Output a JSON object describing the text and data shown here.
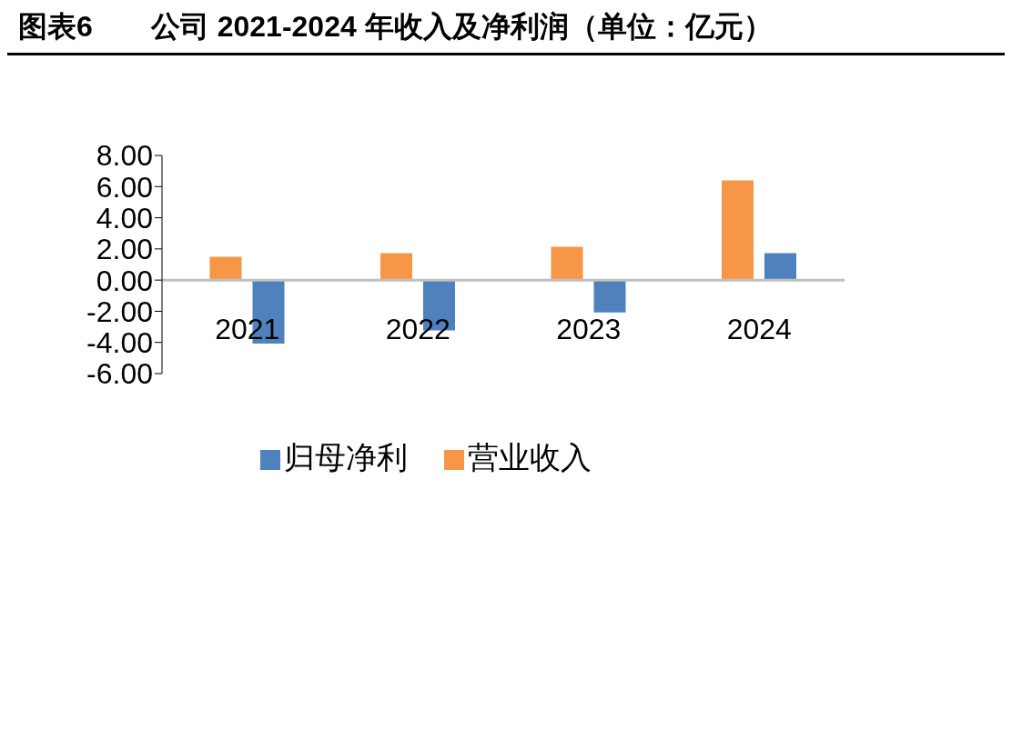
{
  "chart_data": {
    "type": "bar",
    "title": "图表6　　公司 2021-2024 年收入及净利润（单位：亿元）",
    "categories": [
      "2021",
      "2022",
      "2023",
      "2024"
    ],
    "series": [
      {
        "name": "营业收入",
        "color": "#f79646",
        "values": [
          1.5,
          1.73,
          2.14,
          6.39
        ]
      },
      {
        "name": "归母净利",
        "color": "#4f81bd",
        "values": [
          -4.08,
          -3.23,
          -2.07,
          1.73
        ]
      }
    ],
    "ylim": [
      -6,
      8
    ],
    "yticks": [
      {
        "value": -6,
        "label": "-6.00"
      },
      {
        "value": -4,
        "label": "-4.00"
      },
      {
        "value": -2,
        "label": "-2.00"
      },
      {
        "value": 0,
        "label": "0.00"
      },
      {
        "value": 2,
        "label": "2.00"
      },
      {
        "value": 4,
        "label": "4.00"
      },
      {
        "value": 6,
        "label": "6.00"
      },
      {
        "value": 8,
        "label": "8.00"
      }
    ],
    "grid": false,
    "legend": "bottom"
  }
}
